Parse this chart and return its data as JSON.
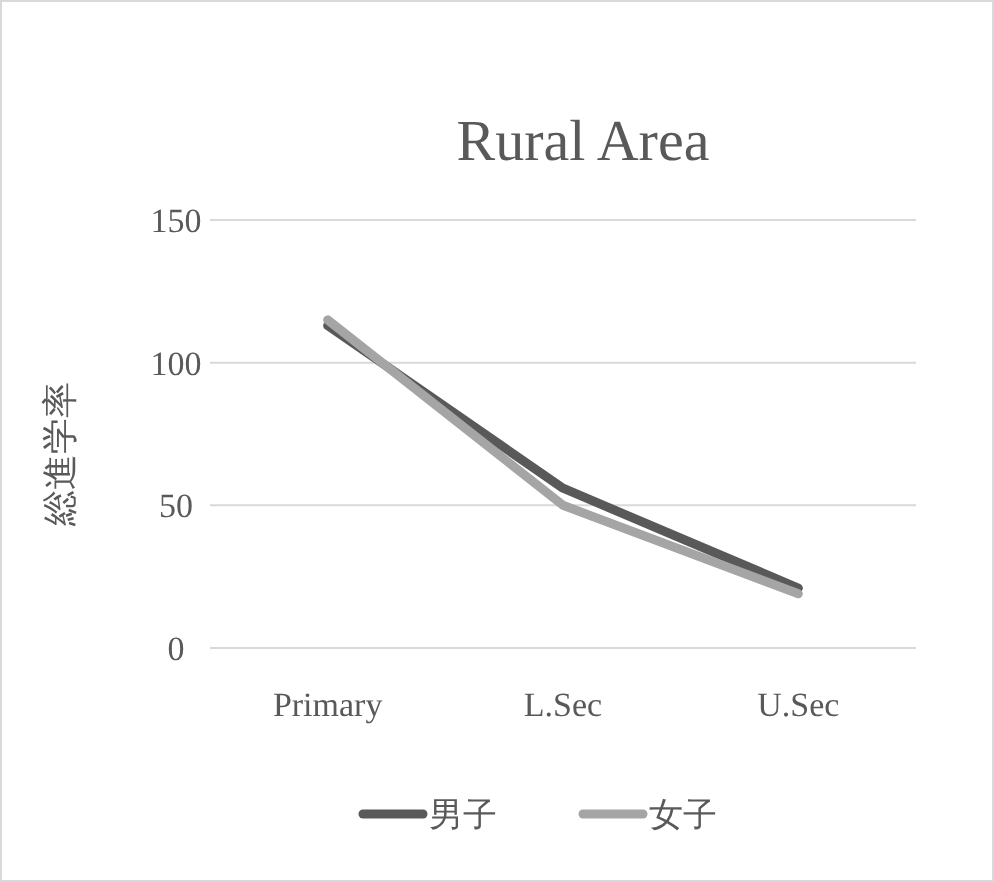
{
  "chart_data": {
    "type": "line",
    "title": "Rural Area",
    "ylabel": "総進学率",
    "categories": [
      "Primary",
      "L.Sec",
      "U.Sec"
    ],
    "series": [
      {
        "name": "男子",
        "color": "#595959",
        "values": [
          113,
          56,
          21
        ]
      },
      {
        "name": "女子",
        "color": "#a5a5a5",
        "values": [
          115,
          50,
          19
        ]
      }
    ],
    "ylim": [
      0,
      150
    ],
    "yticks": [
      0,
      50,
      100,
      150
    ],
    "grid": "y",
    "legend": "bottom",
    "marker": "none",
    "line_style": "solid"
  }
}
